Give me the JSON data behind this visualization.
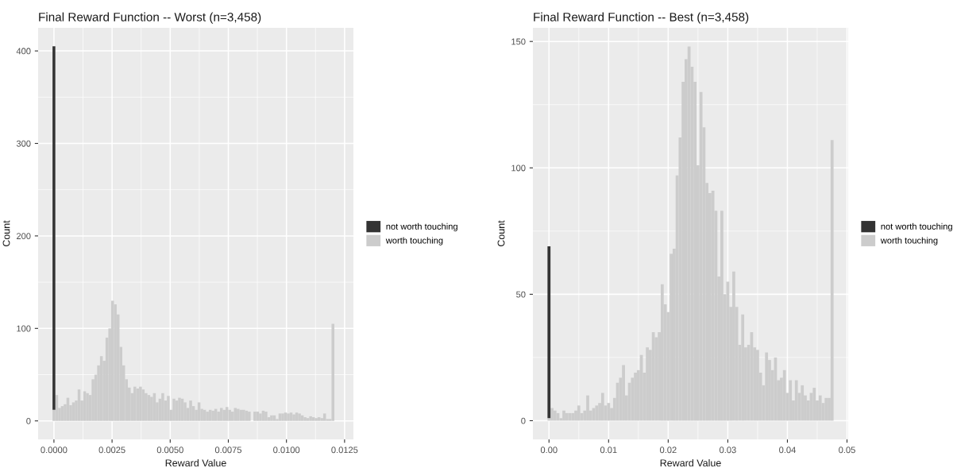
{
  "chart_data": [
    {
      "type": "bar",
      "title": "Final Reward Function -- Worst (n=3,458)",
      "xlabel": "Reward Value",
      "ylabel": "Count",
      "stacked": true,
      "grid": true,
      "legend": "right",
      "x": [
        0,
        0.00012,
        0.00024,
        0.00036,
        0.00048,
        0.0006,
        0.00072,
        0.00084,
        0.00096,
        0.00108,
        0.0012,
        0.00132,
        0.00144,
        0.00156,
        0.00168,
        0.0018,
        0.00192,
        0.00204,
        0.00216,
        0.00228,
        0.0024,
        0.00252,
        0.00264,
        0.00276,
        0.00288,
        0.003,
        0.00312,
        0.00324,
        0.00336,
        0.00348,
        0.0036,
        0.00372,
        0.00384,
        0.00396,
        0.00408,
        0.0042,
        0.00432,
        0.00444,
        0.00456,
        0.00468,
        0.0048,
        0.00492,
        0.00504,
        0.00516,
        0.00528,
        0.0054,
        0.00552,
        0.00564,
        0.00576,
        0.00588,
        0.006,
        0.00612,
        0.00624,
        0.00636,
        0.00648,
        0.0066,
        0.00672,
        0.00684,
        0.00696,
        0.00708,
        0.0072,
        0.00732,
        0.00744,
        0.00756,
        0.00768,
        0.0078,
        0.00792,
        0.00804,
        0.00816,
        0.00828,
        0.0084,
        0.00852,
        0.00864,
        0.00876,
        0.00888,
        0.009,
        0.00912,
        0.00924,
        0.00936,
        0.00948,
        0.0096,
        0.00972,
        0.00984,
        0.00996,
        0.01008,
        0.0102,
        0.01032,
        0.01044,
        0.01056,
        0.01068,
        0.0108,
        0.01092,
        0.01104,
        0.01116,
        0.01128,
        0.0114,
        0.01152,
        0.01164,
        0.01176,
        0.01188,
        0.012
      ],
      "series": [
        {
          "name": "worth touching",
          "color": "#cccccc",
          "values": [
            12,
            28,
            14,
            16,
            18,
            25,
            17,
            20,
            22,
            34,
            22,
            32,
            30,
            28,
            45,
            50,
            60,
            70,
            65,
            90,
            100,
            130,
            126,
            115,
            80,
            60,
            45,
            36,
            30,
            37,
            35,
            37,
            34,
            30,
            28,
            26,
            30,
            20,
            24,
            30,
            22,
            27,
            12,
            24,
            22,
            25,
            24,
            20,
            14,
            22,
            16,
            12,
            20,
            13,
            12,
            10,
            12,
            11,
            13,
            10,
            14,
            12,
            15,
            12,
            10,
            14,
            13,
            12,
            12,
            11,
            10,
            0,
            10,
            10,
            8,
            11,
            10,
            4,
            6,
            6,
            2,
            8,
            8,
            9,
            8,
            9,
            7,
            9,
            8,
            6,
            4,
            3,
            5,
            4,
            3,
            4,
            3,
            8,
            2,
            2,
            105
          ]
        },
        {
          "name": "not worth touching",
          "color": "#333333",
          "values": [
            393,
            0,
            0,
            0,
            0,
            0,
            0,
            0,
            0,
            0,
            0,
            0,
            0,
            0,
            0,
            0,
            0,
            0,
            0,
            0,
            0,
            0,
            0,
            0,
            0,
            0,
            0,
            0,
            0,
            0,
            0,
            0,
            0,
            0,
            0,
            0,
            0,
            0,
            0,
            0,
            0,
            0,
            0,
            0,
            0,
            0,
            0,
            0,
            0,
            0,
            0,
            0,
            0,
            0,
            0,
            0,
            0,
            0,
            0,
            0,
            0,
            0,
            0,
            0,
            0,
            0,
            0,
            0,
            0,
            0,
            0,
            0,
            0,
            0,
            0,
            0,
            0,
            0,
            0,
            0,
            0,
            0,
            0,
            0,
            0,
            0,
            0,
            0,
            0,
            0,
            0,
            0,
            0,
            0,
            0,
            0,
            0,
            0,
            0,
            0,
            0
          ]
        }
      ],
      "xlim": [
        -0.00068,
        0.01288
      ],
      "ylim": [
        -20,
        425
      ],
      "xticks": [
        {
          "value": 0,
          "label": "0.0000"
        },
        {
          "value": 0.0025,
          "label": "0.0025"
        },
        {
          "value": 0.005,
          "label": "0.0050"
        },
        {
          "value": 0.0075,
          "label": "0.0075"
        },
        {
          "value": 0.01,
          "label": "0.0100"
        },
        {
          "value": 0.0125,
          "label": "0.0125"
        }
      ],
      "yticks": [
        0,
        100,
        200,
        300,
        400
      ]
    },
    {
      "type": "bar",
      "title": "Final Reward Function -- Best (n=3,458)",
      "xlabel": "Reward Value",
      "ylabel": "Count",
      "stacked": true,
      "grid": true,
      "legend": "right",
      "x": [
        0,
        0.0005,
        0.001,
        0.0015,
        0.002,
        0.0025,
        0.003,
        0.0035,
        0.004,
        0.0045,
        0.005,
        0.0055,
        0.006,
        0.0065,
        0.007,
        0.0075,
        0.008,
        0.0085,
        0.009,
        0.0095,
        0.01,
        0.0105,
        0.011,
        0.0115,
        0.012,
        0.0125,
        0.013,
        0.0135,
        0.014,
        0.0145,
        0.015,
        0.0155,
        0.016,
        0.0165,
        0.017,
        0.0175,
        0.018,
        0.0185,
        0.019,
        0.0195,
        0.02,
        0.0205,
        0.021,
        0.0215,
        0.022,
        0.0225,
        0.023,
        0.0235,
        0.024,
        0.0245,
        0.025,
        0.0255,
        0.026,
        0.0265,
        0.027,
        0.0275,
        0.028,
        0.0285,
        0.029,
        0.0295,
        0.03,
        0.0305,
        0.031,
        0.0315,
        0.032,
        0.0325,
        0.033,
        0.0335,
        0.034,
        0.0345,
        0.035,
        0.0355,
        0.036,
        0.0365,
        0.037,
        0.0375,
        0.038,
        0.0385,
        0.039,
        0.0395,
        0.04,
        0.0405,
        0.041,
        0.0415,
        0.042,
        0.0425,
        0.043,
        0.0435,
        0.044,
        0.0445,
        0.045,
        0.0455,
        0.046,
        0.0465,
        0.047,
        0.0475
      ],
      "series": [
        {
          "name": "worth touching",
          "color": "#cccccc",
          "values": [
            1,
            5,
            4,
            3,
            1,
            4,
            3,
            3,
            3,
            4,
            6,
            3,
            4,
            10,
            4,
            5,
            6,
            7,
            11,
            6,
            7,
            5,
            9,
            15,
            17,
            22,
            10,
            15,
            17,
            19,
            20,
            26,
            19,
            29,
            28,
            35,
            33,
            35,
            54,
            46,
            43,
            66,
            68,
            97,
            112,
            134,
            143,
            148,
            140,
            134,
            101,
            130,
            116,
            94,
            90,
            91,
            83,
            57,
            83,
            50,
            55,
            45,
            59,
            45,
            30,
            42,
            29,
            30,
            35,
            29,
            28,
            19,
            14,
            27,
            24,
            20,
            25,
            16,
            17,
            20,
            11,
            16,
            8,
            16,
            11,
            14,
            10,
            8,
            11,
            13,
            8,
            10,
            7,
            9,
            9,
            111
          ]
        },
        {
          "name": "not worth touching",
          "color": "#333333",
          "values": [
            68,
            0,
            0,
            0,
            0,
            0,
            0,
            0,
            0,
            0,
            0,
            0,
            0,
            0,
            0,
            0,
            0,
            0,
            0,
            0,
            0,
            0,
            0,
            0,
            0,
            0,
            0,
            0,
            0,
            0,
            0,
            0,
            0,
            0,
            0,
            0,
            0,
            0,
            0,
            0,
            0,
            0,
            0,
            0,
            0,
            0,
            0,
            0,
            0,
            0,
            0,
            0,
            0,
            0,
            0,
            0,
            0,
            0,
            0,
            0,
            0,
            0,
            0,
            0,
            0,
            0,
            0,
            0,
            0,
            0,
            0,
            0,
            0,
            0,
            0,
            0,
            0,
            0,
            0,
            0,
            0,
            0,
            0,
            0,
            0,
            0,
            0,
            0,
            0,
            0,
            0,
            0,
            0,
            0,
            0,
            0
          ]
        }
      ],
      "xlim": [
        -0.0027,
        0.0502
      ],
      "ylim": [
        -7.4,
        155.4
      ],
      "xticks": [
        {
          "value": 0,
          "label": "0.00"
        },
        {
          "value": 0.01,
          "label": "0.01"
        },
        {
          "value": 0.02,
          "label": "0.02"
        },
        {
          "value": 0.03,
          "label": "0.03"
        },
        {
          "value": 0.04,
          "label": "0.04"
        },
        {
          "value": 0.05,
          "label": "0.05"
        }
      ],
      "yticks": [
        0,
        50,
        100,
        150
      ]
    }
  ]
}
